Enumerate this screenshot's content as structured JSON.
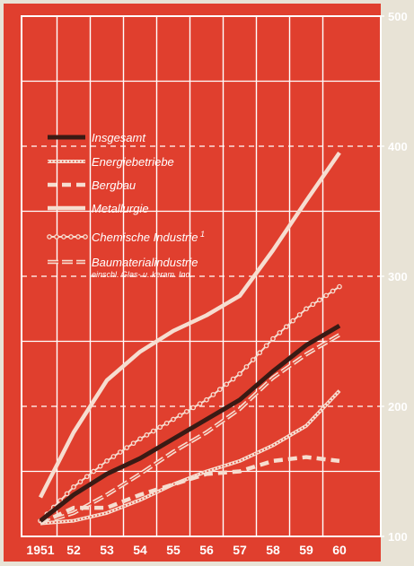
{
  "chart_data": {
    "type": "line",
    "x": [
      "1951",
      "52",
      "53",
      "54",
      "55",
      "56",
      "57",
      "58",
      "59",
      "60"
    ],
    "ylim": [
      100,
      500
    ],
    "yticks": [
      "100",
      "200",
      "300",
      "400",
      "500"
    ],
    "grid": true,
    "legend_position": "top-left",
    "series": [
      {
        "key": "metallurgie",
        "name": "Metallurgie",
        "values": [
          130,
          180,
          220,
          242,
          258,
          270,
          285,
          320,
          358,
          395
        ]
      },
      {
        "key": "chemie",
        "name": "Chemische Industrie",
        "name_sup": "1",
        "values": [
          112,
          138,
          158,
          175,
          190,
          205,
          225,
          252,
          275,
          292
        ]
      },
      {
        "key": "insgesamt",
        "name": "Insgesamt",
        "values": [
          112,
          132,
          148,
          160,
          175,
          190,
          205,
          227,
          247,
          262
        ]
      },
      {
        "key": "baumaterial",
        "name": "Baumaterialindustrie",
        "name_sub": "einschl. Glas- u. keram. Ind.",
        "values": [
          110,
          118,
          132,
          148,
          165,
          180,
          198,
          222,
          240,
          255
        ]
      },
      {
        "key": "energie",
        "name": "Energiebetriebe",
        "values": [
          110,
          112,
          118,
          128,
          140,
          150,
          158,
          170,
          185,
          212
        ]
      },
      {
        "key": "bergbau",
        "name": "Bergbau",
        "values": [
          110,
          122,
          122,
          132,
          140,
          148,
          150,
          158,
          161,
          158
        ]
      }
    ],
    "colors": {
      "background": "#e03f2e",
      "grid": "#ffffff",
      "line_main": "#3a1a14",
      "line_light": "#f6ddd0"
    }
  }
}
